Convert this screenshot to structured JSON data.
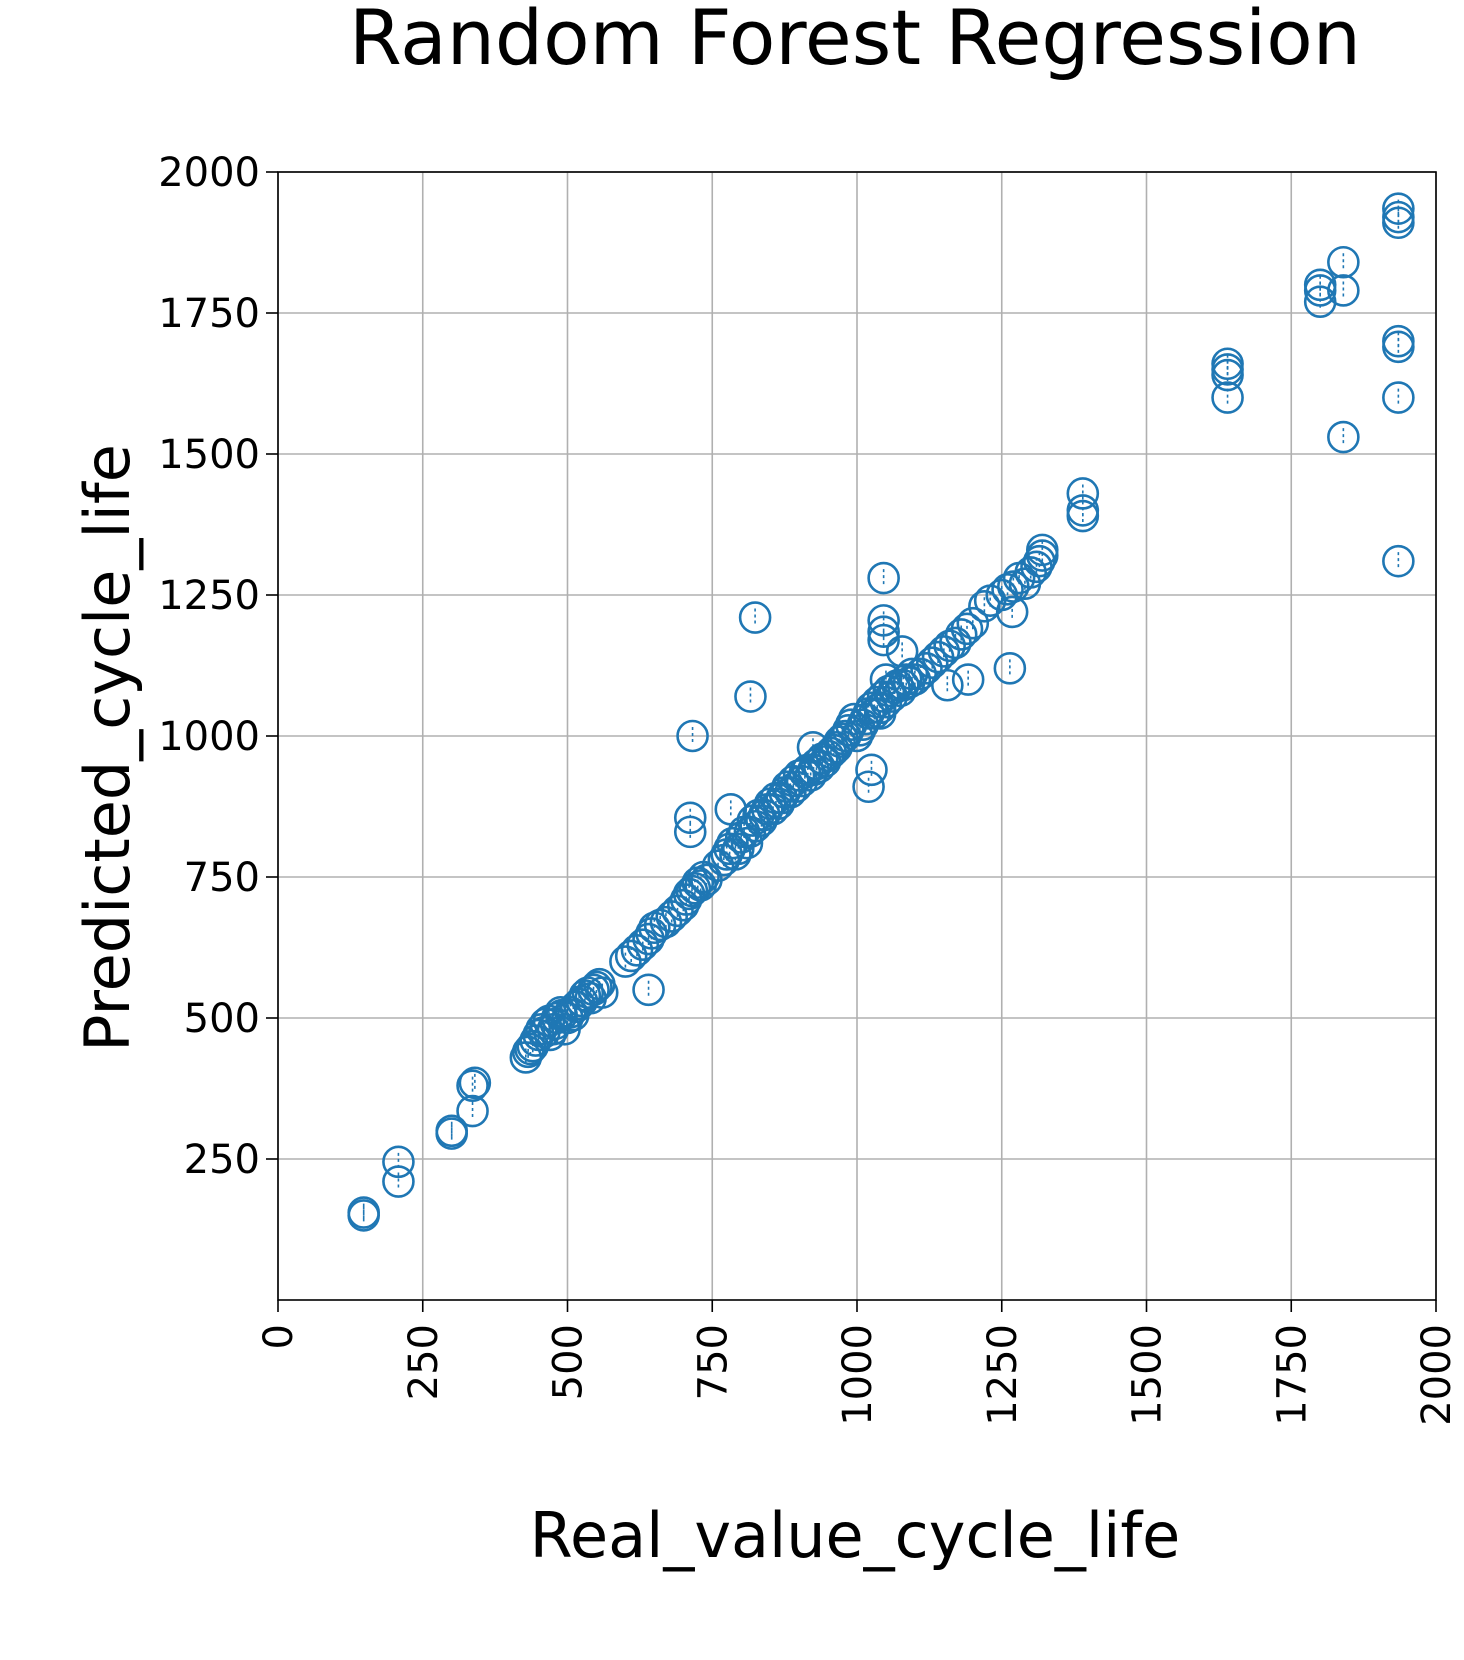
{
  "chart_data": {
    "type": "scatter",
    "title": "Random Forest Regression",
    "xlabel": "Real_value_cycle_life",
    "ylabel": "Predicted_cycle_life",
    "xlim": [
      0,
      2000
    ],
    "ylim": [
      0,
      2000
    ],
    "x_ticks": [
      "0",
      "250",
      "500",
      "750",
      "1000",
      "1250",
      "1500",
      "1750",
      "2000"
    ],
    "y_ticks": [
      "250",
      "500",
      "750",
      "1000",
      "1250",
      "1500",
      "1750",
      "2000"
    ],
    "grid": true,
    "marker": "open-circle",
    "color": "#1f77b4",
    "series": [
      {
        "x": [
          148,
          148,
          208,
          208,
          300,
          300,
          336,
          336,
          340,
          428,
          432,
          436,
          440,
          445,
          450,
          455,
          460,
          462,
          468,
          470,
          475,
          480,
          482,
          488,
          490,
          495,
          500,
          505,
          510,
          515,
          520,
          525,
          530,
          535,
          540,
          545,
          550,
          555,
          560,
          600,
          610,
          620,
          630,
          640,
          645,
          650,
          660,
          670,
          680,
          690,
          700,
          705,
          710,
          715,
          720,
          725,
          730,
          735,
          740,
          760,
          770,
          775,
          780,
          785,
          790,
          795,
          800,
          805,
          810,
          815,
          820,
          825,
          830,
          835,
          840,
          845,
          850,
          855,
          860,
          865,
          870,
          875,
          880,
          885,
          890,
          895,
          900,
          905,
          910,
          915,
          920,
          925,
          930,
          935,
          940,
          945,
          950,
          955,
          960,
          965,
          970,
          975,
          980,
          985,
          990,
          995,
          1000,
          1005,
          1010,
          1015,
          1020,
          1025,
          1030,
          1035,
          1040,
          1045,
          1050,
          1055,
          1060,
          1065,
          1070,
          1075,
          1080,
          1085,
          1090,
          1095,
          1100,
          1110,
          1120,
          1130,
          1140,
          1150,
          1160,
          1170,
          1180,
          1190,
          1200,
          1220,
          1230,
          1250,
          1260,
          1270,
          1280,
          1290,
          1300,
          1310,
          1315,
          1320,
          1320,
          1390,
          1390,
          1390,
          1640,
          1640,
          1640,
          1640,
          1800,
          1800,
          1800,
          1840,
          1840,
          1840,
          1935,
          1935,
          1935,
          1935,
          1935,
          1935,
          1935,
          640,
          712,
          712,
          716,
          782,
          816,
          824,
          1020,
          1025,
          1046,
          1046,
          1046,
          1046,
          1050,
          1078,
          1192,
          1264,
          1268,
          1156,
          924,
          1040
        ],
        "y": [
          150,
          155,
          210,
          245,
          295,
          300,
          335,
          380,
          385,
          430,
          440,
          445,
          450,
          460,
          470,
          480,
          475,
          490,
          495,
          470,
          480,
          490,
          500,
          510,
          505,
          480,
          500,
          510,
          505,
          520,
          525,
          530,
          540,
          545,
          535,
          550,
          555,
          560,
          545,
          600,
          610,
          620,
          630,
          640,
          650,
          660,
          665,
          670,
          680,
          690,
          700,
          710,
          720,
          725,
          730,
          740,
          735,
          750,
          745,
          770,
          780,
          790,
          800,
          810,
          790,
          800,
          820,
          830,
          810,
          830,
          850,
          840,
          860,
          850,
          860,
          870,
          880,
          870,
          890,
          880,
          890,
          900,
          910,
          900,
          920,
          910,
          930,
          920,
          935,
          940,
          930,
          940,
          950,
          945,
          960,
          955,
          965,
          970,
          975,
          980,
          990,
          995,
          1000,
          1010,
          1020,
          1030,
          1000,
          1010,
          1020,
          1030,
          1040,
          1050,
          1040,
          1060,
          1050,
          1070,
          1060,
          1080,
          1070,
          1085,
          1090,
          1080,
          1090,
          1100,
          1095,
          1110,
          1100,
          1110,
          1120,
          1130,
          1140,
          1150,
          1160,
          1165,
          1180,
          1190,
          1200,
          1230,
          1240,
          1250,
          1260,
          1265,
          1280,
          1270,
          1290,
          1300,
          1310,
          1320,
          1330,
          1390,
          1400,
          1430,
          1600,
          1640,
          1650,
          1660,
          1770,
          1790,
          1800,
          1790,
          1840,
          1530,
          1310,
          1600,
          1690,
          1700,
          1910,
          1920,
          1935,
          550,
          830,
          855,
          1000,
          870,
          1070,
          1210,
          910,
          940,
          1170,
          1185,
          1205,
          1280,
          1100,
          1150,
          1100,
          1120,
          1220,
          1090,
          980,
          1040
        ]
      }
    ]
  }
}
